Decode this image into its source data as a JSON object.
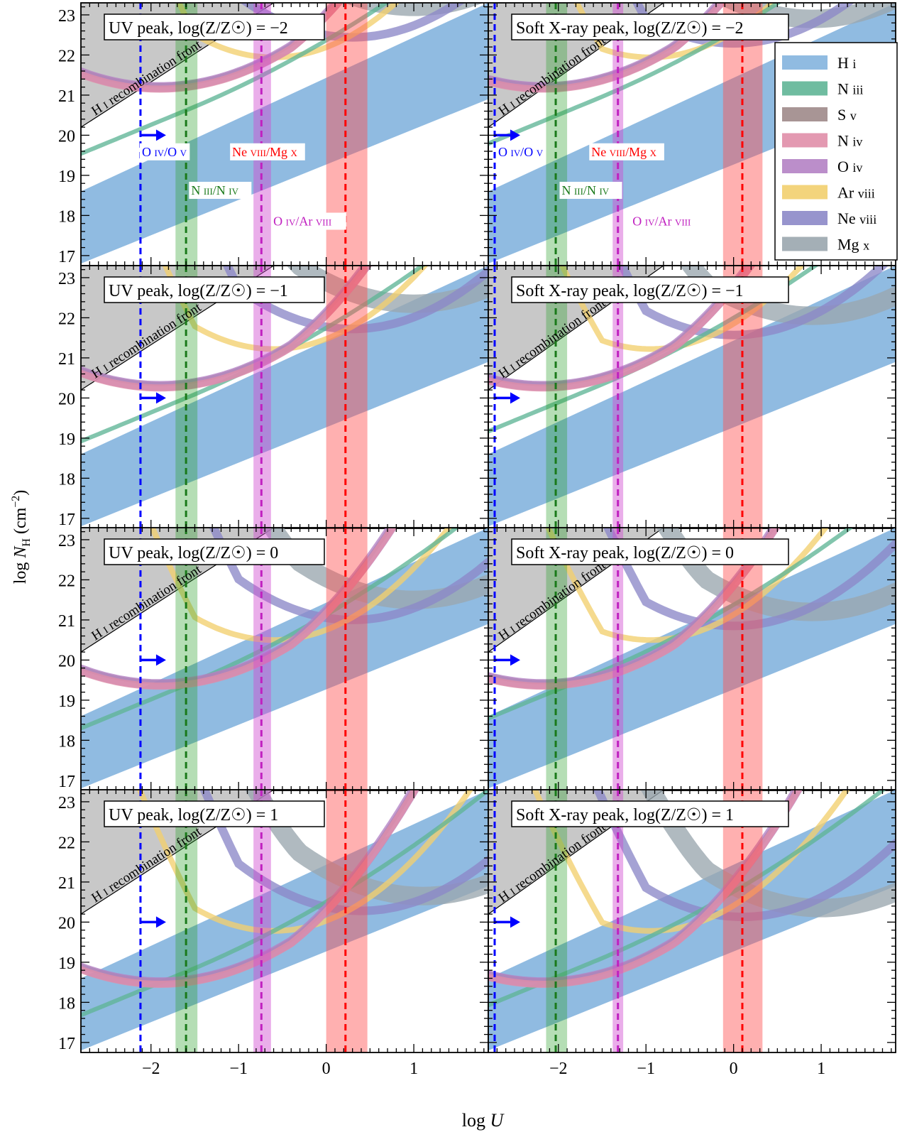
{
  "figure": {
    "xlabel": "log U",
    "ylabel": "log N_H (cm^-2)",
    "y_ticks": [
      17,
      18,
      19,
      20,
      21,
      22,
      23
    ],
    "x_ticks": [
      -2,
      -1,
      0,
      1
    ],
    "x_range": [
      -2.8,
      1.85
    ],
    "y_range": [
      16.75,
      23.3
    ],
    "front_label": "H I recombination front",
    "colors": {
      "H I": "#84b4de",
      "N III": "#5fb596",
      "S V": "#9e8a8a",
      "N IV": "#e08ea8",
      "O IV": "#b482c4",
      "Ar VIII": "#f2cf6e",
      "Ne VIII": "#8c88c8",
      "Mg X": "#9aa6ae",
      "uv_ratio_line": "#0000ff",
      "green_band": "#2ca02c",
      "magenta_band": "#d04bd0",
      "red_band": "#ff5050",
      "front_fill": "#c8c8c8"
    }
  },
  "legend": {
    "placement": "top-right of the top-right panel",
    "items": [
      {
        "label": "H I",
        "color": "#84b4de"
      },
      {
        "label": "N III",
        "color": "#5fb596"
      },
      {
        "label": "S V",
        "color": "#9e8a8a"
      },
      {
        "label": "N IV",
        "color": "#e08ea8"
      },
      {
        "label": "O IV",
        "color": "#b482c4"
      },
      {
        "label": "Ar VIII",
        "color": "#f2cf6e"
      },
      {
        "label": "Ne VIII",
        "color": "#8c88c8"
      },
      {
        "label": "Mg X",
        "color": "#9aa6ae"
      }
    ]
  },
  "ratio_labels": {
    "oiv_ov": "O IV/O V",
    "niii_niv": "N III/N IV",
    "oiv_arviii": "O IV/Ar VIII",
    "neviii_mgx": "Ne VIII/Mg X"
  },
  "chart_data": [
    {
      "type": "line",
      "title": "UV peak, log(Z/Z☉) = −2",
      "col": 0,
      "row": 0,
      "z": -2,
      "limit_oiv_ov": -2.12,
      "niii_niv": [
        -1.72,
        -1.47,
        -1.6
      ],
      "oiv_arviii": [
        -0.83,
        -0.63,
        -0.74
      ],
      "neviii_mgx": [
        0.0,
        0.47,
        0.22
      ],
      "hi_band": {
        "lower": [
          [
            -2.8,
            16.8
          ],
          [
            1.85,
            20.9
          ]
        ],
        "upper": [
          [
            -2.8,
            18.6
          ],
          [
            1.85,
            23.3
          ]
        ]
      }
    },
    {
      "type": "line",
      "title": "Soft X-ray peak, log(Z/Z☉) = −2",
      "col": 1,
      "row": 0,
      "z": -2,
      "limit_oiv_ov": -2.8,
      "niii_niv": [
        -2.14,
        -1.9,
        -2.03
      ],
      "oiv_arviii": [
        -1.38,
        -1.26,
        -1.32
      ],
      "neviii_mgx": [
        -0.12,
        0.33,
        0.1
      ],
      "hi_band": {
        "lower": [
          [
            -2.8,
            16.8
          ],
          [
            1.85,
            20.9
          ]
        ],
        "upper": [
          [
            -2.8,
            18.6
          ],
          [
            1.85,
            23.3
          ]
        ]
      }
    },
    {
      "type": "line",
      "title": "UV peak, log(Z/Z☉) = −1",
      "col": 0,
      "row": 1,
      "z": -1,
      "limit_oiv_ov": -2.12,
      "niii_niv": [
        -1.72,
        -1.47,
        -1.6
      ],
      "oiv_arviii": [
        -0.83,
        -0.63,
        -0.74
      ],
      "neviii_mgx": [
        0.0,
        0.47,
        0.22
      ],
      "hi_band": {
        "lower": [
          [
            -2.8,
            16.8
          ],
          [
            1.85,
            20.9
          ]
        ],
        "upper": [
          [
            -2.8,
            18.6
          ],
          [
            1.85,
            23.3
          ]
        ]
      }
    },
    {
      "type": "line",
      "title": "Soft X-ray peak, log(Z/Z☉) = −1",
      "col": 1,
      "row": 1,
      "z": -1,
      "limit_oiv_ov": -2.8,
      "niii_niv": [
        -2.14,
        -1.9,
        -2.03
      ],
      "oiv_arviii": [
        -1.38,
        -1.26,
        -1.32
      ],
      "neviii_mgx": [
        -0.12,
        0.33,
        0.1
      ],
      "hi_band": {
        "lower": [
          [
            -2.8,
            16.8
          ],
          [
            1.85,
            20.9
          ]
        ],
        "upper": [
          [
            -2.8,
            18.6
          ],
          [
            1.85,
            23.3
          ]
        ]
      }
    },
    {
      "type": "line",
      "title": "UV peak, log(Z/Z☉) = 0",
      "col": 0,
      "row": 2,
      "z": 0,
      "limit_oiv_ov": -2.12,
      "niii_niv": [
        -1.72,
        -1.47,
        -1.6
      ],
      "oiv_arviii": [
        -0.83,
        -0.63,
        -0.74
      ],
      "neviii_mgx": [
        0.0,
        0.47,
        0.22
      ],
      "hi_band": {
        "lower": [
          [
            -2.8,
            16.8
          ],
          [
            1.85,
            20.9
          ]
        ],
        "upper": [
          [
            -2.8,
            18.6
          ],
          [
            1.85,
            23.3
          ]
        ]
      }
    },
    {
      "type": "line",
      "title": "Soft X-ray peak, log(Z/Z☉) = 0",
      "col": 1,
      "row": 2,
      "z": 0,
      "limit_oiv_ov": -2.8,
      "niii_niv": [
        -2.14,
        -1.9,
        -2.03
      ],
      "oiv_arviii": [
        -1.38,
        -1.26,
        -1.32
      ],
      "neviii_mgx": [
        -0.12,
        0.33,
        0.1
      ],
      "hi_band": {
        "lower": [
          [
            -2.8,
            16.8
          ],
          [
            1.85,
            20.9
          ]
        ],
        "upper": [
          [
            -2.8,
            18.6
          ],
          [
            1.85,
            23.3
          ]
        ]
      }
    },
    {
      "type": "line",
      "title": "UV peak, log(Z/Z☉) = 1",
      "col": 0,
      "row": 3,
      "z": 1,
      "limit_oiv_ov": -2.12,
      "niii_niv": [
        -1.72,
        -1.47,
        -1.6
      ],
      "oiv_arviii": [
        -0.83,
        -0.63,
        -0.74
      ],
      "neviii_mgx": [
        0.0,
        0.47,
        0.22
      ],
      "hi_band": {
        "lower": [
          [
            -2.8,
            16.8
          ],
          [
            1.85,
            20.9
          ]
        ],
        "upper": [
          [
            -2.8,
            18.6
          ],
          [
            1.85,
            23.3
          ]
        ]
      }
    },
    {
      "type": "line",
      "title": "Soft X-ray peak, log(Z/Z☉) = 1",
      "col": 1,
      "row": 3,
      "z": 1,
      "limit_oiv_ov": -2.8,
      "niii_niv": [
        -2.14,
        -1.9,
        -2.03
      ],
      "oiv_arviii": [
        -1.38,
        -1.26,
        -1.32
      ],
      "neviii_mgx": [
        -0.12,
        0.33,
        0.1
      ],
      "hi_band": {
        "lower": [
          [
            -2.8,
            16.8
          ],
          [
            1.85,
            20.9
          ]
        ],
        "upper": [
          [
            -2.8,
            18.6
          ],
          [
            1.85,
            23.3
          ]
        ]
      }
    }
  ]
}
